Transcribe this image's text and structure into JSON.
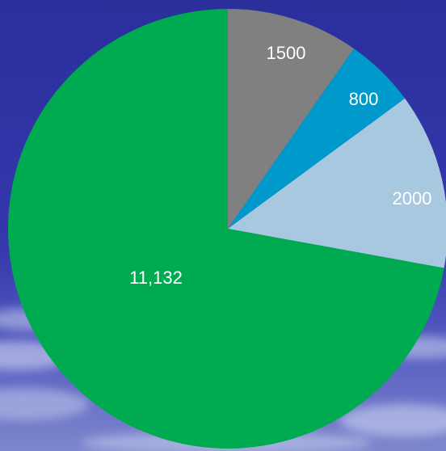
{
  "chart_data": {
    "type": "pie",
    "start_angle_deg": 0,
    "direction": "clockwise",
    "slices": [
      {
        "label": "1500",
        "value": 1500,
        "color": "#808080"
      },
      {
        "label": "800",
        "value": 800,
        "color": "#0099cc"
      },
      {
        "label": "2000",
        "value": 2000,
        "color": "#a8c8e0"
      },
      {
        "label": "11,132",
        "value": 11132,
        "color": "#00aa50"
      }
    ]
  },
  "colors": {
    "background_top": "#2a2f9e",
    "background_mid": "#3b3fb4",
    "background_haze": "#9aa4d8"
  }
}
